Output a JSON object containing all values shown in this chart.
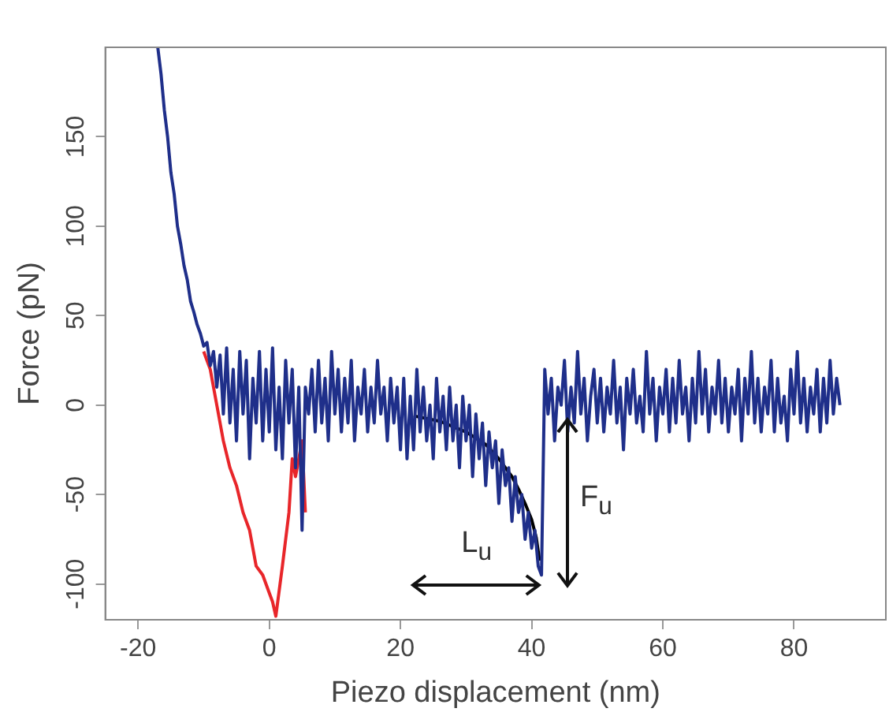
{
  "chart_data": {
    "type": "line",
    "xlabel": "Piezo displacement (nm)",
    "ylabel": "Force (pN)",
    "xlim": [
      -25,
      94
    ],
    "ylim": [
      -120,
      200
    ],
    "xticks": [
      -20,
      0,
      20,
      40,
      60,
      80
    ],
    "yticks": [
      -100,
      -50,
      0,
      50,
      100,
      150
    ],
    "grid": false,
    "legend": false,
    "marker": "none",
    "line_style": "solid",
    "annotations": [
      "L$_{u}$",
      "F$_{u}$"
    ],
    "series": [
      {
        "color": "#1f2f8a",
        "x": [
          -17,
          -16.5,
          -16,
          -15.5,
          -15,
          -14.5,
          -14,
          -13.5,
          -13,
          -12.5,
          -12,
          -11.5,
          -11,
          -10.5,
          -10,
          -9.5,
          -9,
          -8.5,
          -8,
          -7.5,
          -7,
          -6.5,
          -6,
          -5.5,
          -5,
          -4.5,
          -4,
          -3.5,
          -3,
          -2.5,
          -2,
          -1.5,
          -1,
          -0.5,
          0,
          0.5,
          1,
          1.5,
          2,
          2.5,
          3,
          3.5,
          4,
          4.5,
          5,
          5.5,
          6,
          6.5,
          7,
          7.5,
          8,
          8.5,
          9,
          9.5,
          10,
          10.5,
          11,
          11.5,
          12,
          12.5,
          13,
          13.5,
          14,
          14.5,
          15,
          15.5,
          16,
          16.5,
          17,
          17.5,
          18,
          18.5,
          19,
          19.5,
          20,
          20.5,
          21,
          21.5,
          22,
          22.5,
          23,
          23.5,
          24,
          24.5,
          25,
          25.5,
          26,
          26.5,
          27,
          27.5,
          28,
          28.5,
          29,
          29.5,
          30,
          30.5,
          31,
          31.5,
          32,
          32.5,
          33,
          33.5,
          34,
          34.5,
          35,
          35.5,
          36,
          36.5,
          37,
          37.5,
          38,
          38.5,
          39,
          39.5,
          40,
          40.5,
          41,
          41.5,
          42,
          42.5,
          43,
          43.5,
          44,
          44.5,
          45,
          45.5,
          46,
          46.5,
          47,
          47.5,
          48,
          48.5,
          49,
          49.5,
          50,
          50.5,
          51,
          51.5,
          52,
          52.5,
          53,
          53.5,
          54,
          54.5,
          55,
          55.5,
          56,
          56.5,
          57,
          57.5,
          58,
          58.5,
          59,
          59.5,
          60,
          60.5,
          61,
          61.5,
          62,
          62.5,
          63,
          63.5,
          64,
          64.5,
          65,
          65.5,
          66,
          66.5,
          67,
          67.5,
          68,
          68.5,
          69,
          69.5,
          70,
          70.5,
          71,
          71.5,
          72,
          72.5,
          73,
          73.5,
          74,
          74.5,
          75,
          75.5,
          76,
          76.5,
          77,
          77.5,
          78,
          78.5,
          79,
          79.5,
          80,
          80.5,
          81,
          81.5,
          82,
          82.5,
          83,
          83.5,
          84,
          84.5,
          85,
          85.5,
          86,
          86.5,
          87
        ],
        "values": [
          200,
          185,
          165,
          150,
          130,
          118,
          100,
          90,
          78,
          70,
          58,
          52,
          45,
          40,
          33,
          35,
          22,
          30,
          10,
          28,
          -5,
          32,
          -10,
          20,
          -20,
          30,
          -5,
          25,
          -30,
          15,
          -10,
          30,
          -20,
          20,
          -15,
          32,
          -25,
          10,
          -30,
          25,
          -10,
          20,
          -35,
          10,
          -70,
          10,
          -5,
          20,
          -15,
          25,
          -10,
          15,
          -20,
          30,
          -5,
          20,
          -15,
          15,
          -10,
          25,
          -20,
          10,
          -5,
          20,
          -15,
          10,
          -10,
          25,
          -5,
          10,
          -20,
          15,
          -10,
          10,
          -25,
          15,
          -30,
          5,
          -25,
          20,
          -15,
          10,
          -20,
          0,
          -30,
          15,
          -15,
          5,
          -25,
          10,
          -20,
          0,
          -35,
          5,
          -20,
          0,
          -40,
          -5,
          -30,
          -10,
          -45,
          -15,
          -35,
          -20,
          -55,
          -25,
          -45,
          -35,
          -65,
          -40,
          -60,
          -50,
          -75,
          -60,
          -80,
          -70,
          -90,
          -95,
          20,
          -5,
          15,
          -20,
          10,
          0,
          25,
          -15,
          10,
          -10,
          30,
          -5,
          15,
          -20,
          5,
          20,
          -10,
          15,
          -15,
          10,
          -5,
          25,
          -10,
          10,
          -25,
          15,
          -5,
          20,
          -10,
          5,
          -15,
          30,
          -5,
          15,
          -20,
          10,
          -5,
          20,
          -15,
          15,
          -10,
          25,
          -5,
          10,
          -20,
          15,
          -10,
          30,
          -5,
          20,
          -15,
          10,
          -5,
          25,
          -10,
          15,
          -15,
          10,
          -5,
          20,
          -20,
          15,
          -5,
          30,
          -10,
          15,
          -15,
          10,
          -5,
          25,
          -15,
          15,
          -10,
          5,
          -20,
          20,
          -5,
          30,
          -10,
          15,
          -15,
          10,
          -5,
          20,
          -15,
          15,
          -10,
          25,
          -5,
          15,
          0
        ]
      },
      {
        "color": "#e8262a",
        "x": [
          -10,
          -9,
          -8,
          -7,
          -6,
          -5,
          -4,
          -3,
          -2,
          -1,
          0,
          0.5,
          1,
          2,
          3,
          3.5,
          4,
          5,
          5.5
        ],
        "values": [
          30,
          20,
          0,
          -20,
          -35,
          -45,
          -60,
          -70,
          -90,
          -95,
          -105,
          -110,
          -118,
          -90,
          -60,
          -30,
          -40,
          -20,
          -60
        ]
      },
      {
        "color": "#000000",
        "x": [
          22,
          26,
          30,
          33,
          35,
          37,
          38,
          39,
          40,
          40.7,
          41.2
        ],
        "values": [
          -6,
          -9,
          -15,
          -22,
          -30,
          -40,
          -47,
          -55,
          -64,
          -74,
          -87
        ]
      }
    ]
  }
}
